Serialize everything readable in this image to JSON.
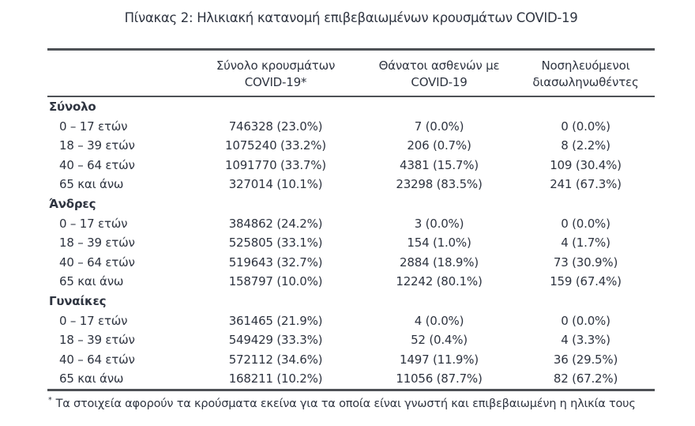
{
  "page": {
    "title": "Πίνακας 2: Ηλικιακή κατανομή επιβεβαιωμένων κρουσμάτων COVID-19"
  },
  "table": {
    "header": {
      "age_col": "",
      "cases_line1": "Σύνολο κρουσμάτων",
      "cases_line2": "COVID-19*",
      "deaths_line1": "Θάνατοι ασθενών με",
      "deaths_line2": "COVID-19",
      "intubated_line1": "Νοσηλευόμενοι",
      "intubated_line2": "διασωληνωθέντες"
    },
    "sections": [
      {
        "label": "Σύνολο",
        "rows": [
          {
            "age": "0 – 17 ετών",
            "cases": "746328 (23.0%)",
            "deaths": "7 (0.0%)",
            "intubated": "0 (0.0%)"
          },
          {
            "age": "18 – 39 ετών",
            "cases": "1075240 (33.2%)",
            "deaths": "206 (0.7%)",
            "intubated": "8 (2.2%)"
          },
          {
            "age": "40 – 64 ετών",
            "cases": "1091770 (33.7%)",
            "deaths": "4381 (15.7%)",
            "intubated": "109 (30.4%)"
          },
          {
            "age": "65 και άνω",
            "cases": "327014 (10.1%)",
            "deaths": "23298 (83.5%)",
            "intubated": "241 (67.3%)"
          }
        ]
      },
      {
        "label": "Άνδρες",
        "rows": [
          {
            "age": "0 – 17 ετών",
            "cases": "384862 (24.2%)",
            "deaths": "3 (0.0%)",
            "intubated": "0 (0.0%)"
          },
          {
            "age": "18 – 39 ετών",
            "cases": "525805 (33.1%)",
            "deaths": "154 (1.0%)",
            "intubated": "4 (1.7%)"
          },
          {
            "age": "40 – 64 ετών",
            "cases": "519643 (32.7%)",
            "deaths": "2884 (18.9%)",
            "intubated": "73 (30.9%)"
          },
          {
            "age": "65 και άνω",
            "cases": "158797 (10.0%)",
            "deaths": "12242 (80.1%)",
            "intubated": "159 (67.4%)"
          }
        ]
      },
      {
        "label": "Γυναίκες",
        "rows": [
          {
            "age": "0 – 17 ετών",
            "cases": "361465 (21.9%)",
            "deaths": "4 (0.0%)",
            "intubated": "0 (0.0%)"
          },
          {
            "age": "18 – 39 ετών",
            "cases": "549429 (33.3%)",
            "deaths": "52 (0.4%)",
            "intubated": "4 (3.3%)"
          },
          {
            "age": "40 – 64 ετών",
            "cases": "572112 (34.6%)",
            "deaths": "1497 (11.9%)",
            "intubated": "36 (29.5%)"
          },
          {
            "age": "65 και άνω",
            "cases": "168211 (10.2%)",
            "deaths": "11056 (87.7%)",
            "intubated": "82 (67.2%)"
          }
        ]
      }
    ],
    "footnote": {
      "marker": "*",
      "text": "Τα στοιχεία αφορούν τα κρούσματα εκείνα για τα οποία είναι γνωστή και επιβεβαιωμένη η ηλικία τους"
    }
  },
  "colors": {
    "background": "#ffffff",
    "text": "#2e3440",
    "rule": "#4e5156"
  }
}
